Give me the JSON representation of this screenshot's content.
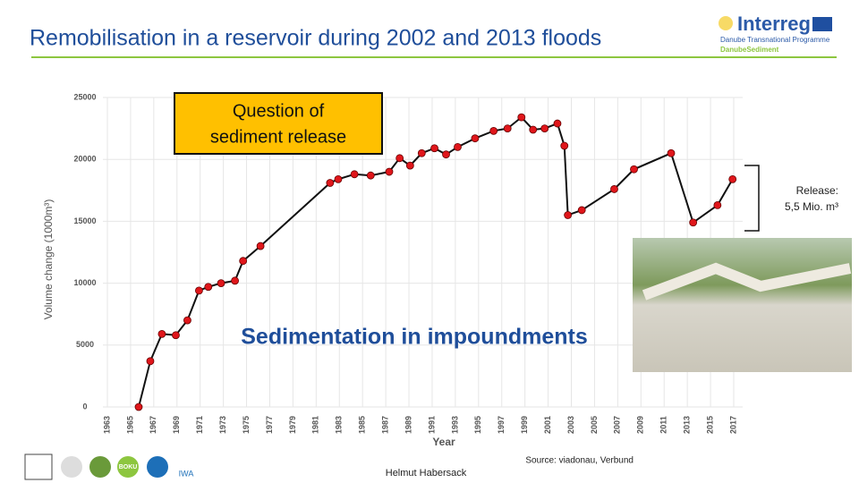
{
  "header": {
    "title": "Remobilisation in a reservoir during 2002 and 2013 floods",
    "logo": "Interreg",
    "programme": "Danube Transnational Programme",
    "project": "DanubeSediment"
  },
  "chart_data": {
    "type": "line",
    "x_label": "Year",
    "y_label": "Volume change (1000m³)",
    "x": [
      1965.7,
      1966.7,
      1967.7,
      1968.9,
      1969.9,
      1970.9,
      1971.7,
      1972.8,
      1974.0,
      1974.7,
      1976.2,
      1982.2,
      1982.9,
      1984.3,
      1985.7,
      1987.3,
      1988.2,
      1989.1,
      1990.1,
      1991.2,
      1992.2,
      1993.2,
      1994.7,
      1996.3,
      1997.5,
      1998.7,
      1999.7,
      2000.7,
      2001.8,
      2002.4,
      2002.7,
      2003.9,
      2006.7,
      2008.4,
      2011.6,
      2013.5,
      2015.6,
      2016.9
    ],
    "values": [
      0,
      3700,
      5900,
      5800,
      7000,
      9400,
      9700,
      10000,
      10200,
      11800,
      13000,
      18100,
      18400,
      18800,
      18700,
      19000,
      20100,
      19500,
      20500,
      20900,
      20400,
      21000,
      21700,
      22300,
      22500,
      23400,
      22400,
      22500,
      22900,
      21100,
      15500,
      15900,
      17600,
      19200,
      20500,
      14900,
      16300,
      18400
    ],
    "line_color": "#111111",
    "marker_color": "#e0161b",
    "xlim": [
      1963,
      2017
    ],
    "xticks": [
      1963,
      1965,
      1967,
      1969,
      1971,
      1973,
      1975,
      1977,
      1979,
      1981,
      1983,
      1985,
      1987,
      1989,
      1991,
      1993,
      1995,
      1997,
      1999,
      2001,
      2003,
      2005,
      2007,
      2009,
      2011,
      2013,
      2015,
      2017
    ],
    "ylim": [
      0,
      25000
    ],
    "yticks": [
      0,
      5000,
      10000,
      15000,
      20000,
      25000
    ],
    "grid": true,
    "question": [
      "Question of",
      "sediment release"
    ],
    "release": [
      "Release:",
      "5,5 Mio. m³"
    ],
    "sedimentation": "Sedimentation in impoundments"
  },
  "footer": {
    "source": "Source: viadonau, Verbund",
    "author": "Helmut Habersack",
    "logos": [
      "BOKU",
      "IWA"
    ]
  }
}
